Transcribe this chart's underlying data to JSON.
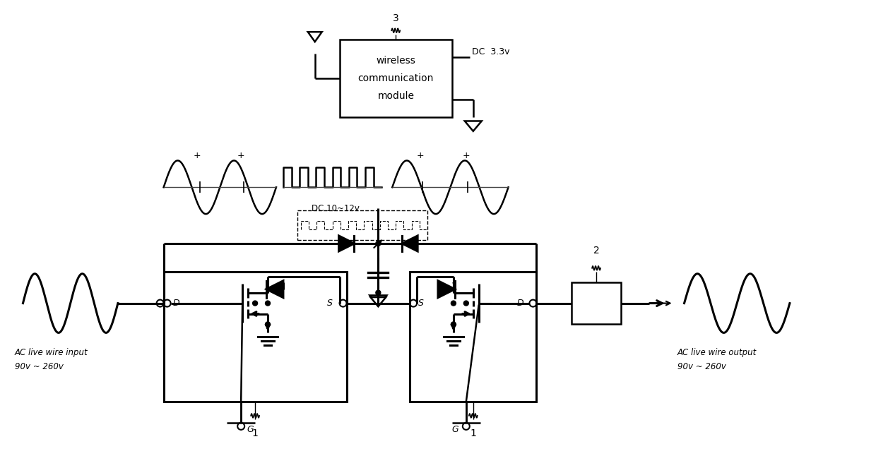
{
  "bg_color": "#ffffff",
  "line_color": "#000000",
  "figsize": [
    12.4,
    6.63
  ],
  "dpi": 100,
  "ac_input_label1": "AC live wire input",
  "ac_input_label2": "90v ~ 260v",
  "ac_output_label1": "AC live wire output",
  "ac_output_label2": "90v ~ 260v",
  "wireless_line1": "wireless",
  "wireless_line2": "communication",
  "wireless_line3": "module",
  "dc_33v": "DC  3.3v",
  "dc_10_12v": "DC 10~12v",
  "label_3": "3",
  "label_2": "2",
  "label_1a": "1",
  "label_1b": "1"
}
